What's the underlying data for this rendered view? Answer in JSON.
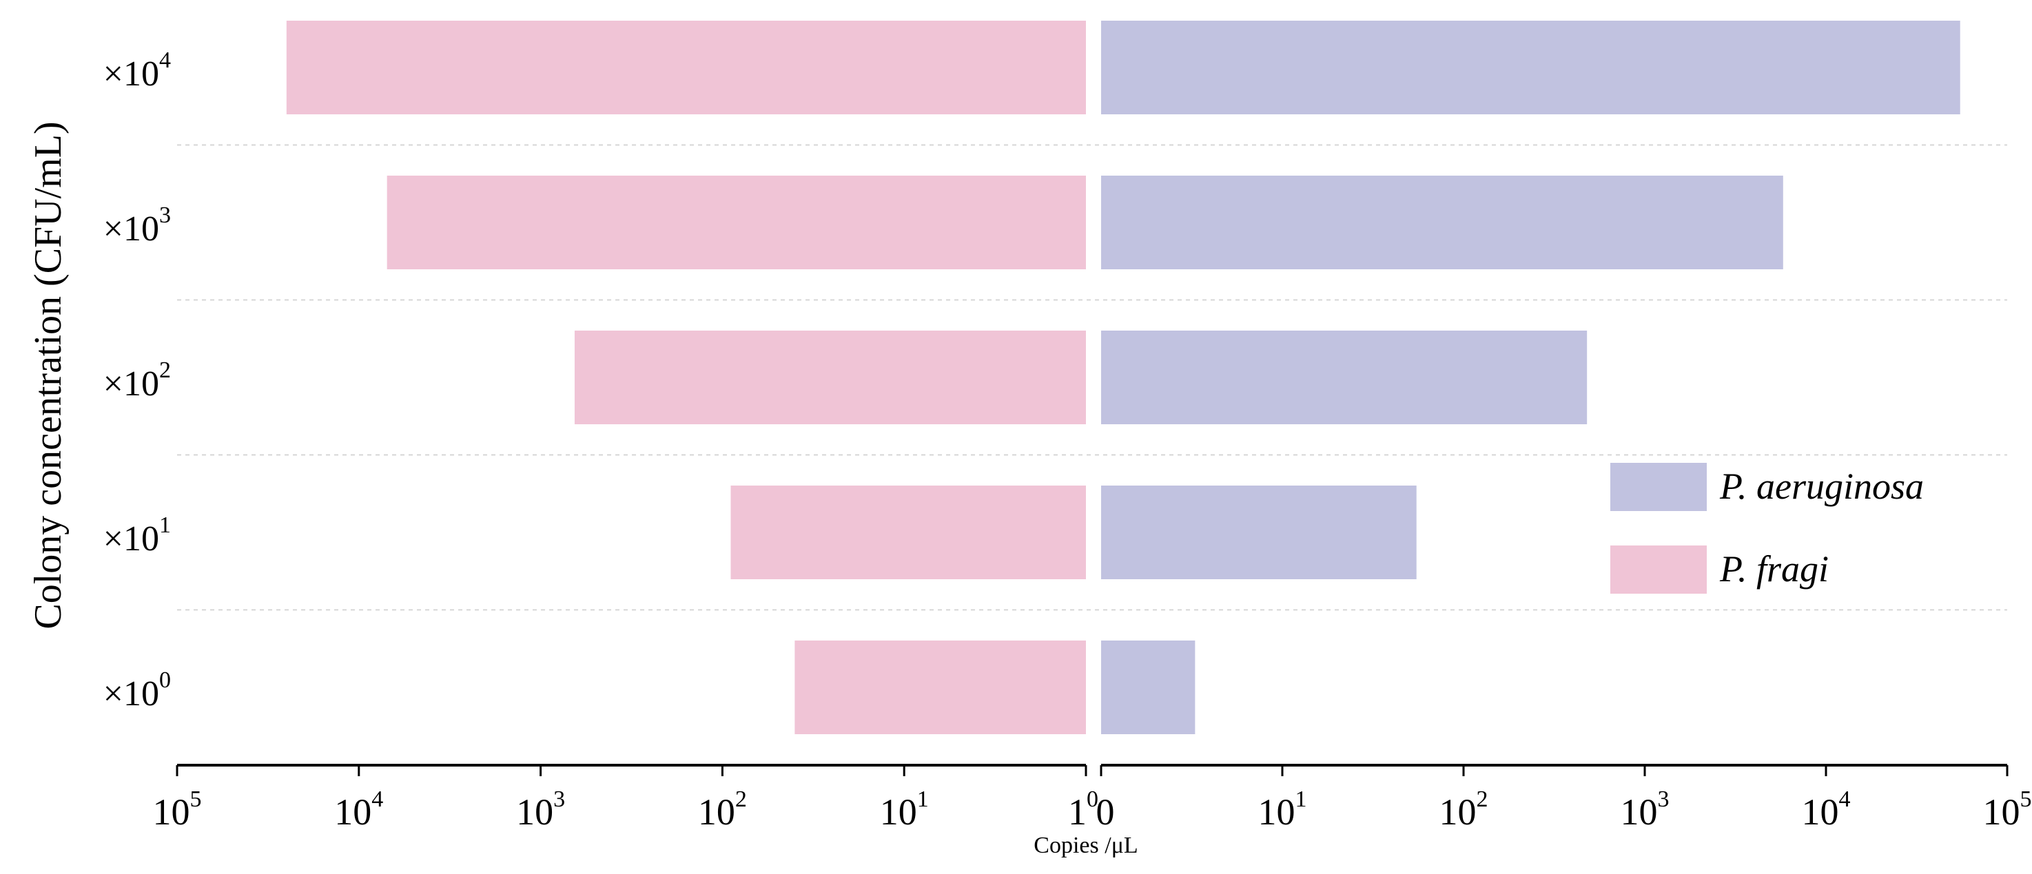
{
  "chart_data": {
    "type": "bar",
    "orientation": "horizontal-butterfly",
    "xscale": "log",
    "xlim": [
      1,
      100000
    ],
    "ylabel": "Colony concentration (CFU/mL)",
    "xlabel": "Copies /μL",
    "categories": [
      "×10⁴",
      "×10³",
      "×10²",
      "×10¹",
      "×10⁰"
    ],
    "category_labels": [
      {
        "base": "×10",
        "exp": "4"
      },
      {
        "base": "×10",
        "exp": "3"
      },
      {
        "base": "×10",
        "exp": "2"
      },
      {
        "base": "×10",
        "exp": "1"
      },
      {
        "base": "×10",
        "exp": "0"
      }
    ],
    "x_ticks_left": [
      {
        "base": "10",
        "exp": "5"
      },
      {
        "base": "10",
        "exp": "4"
      },
      {
        "base": "10",
        "exp": "3"
      },
      {
        "base": "10",
        "exp": "2"
      },
      {
        "base": "10",
        "exp": "1"
      },
      {
        "base": "1",
        "exp": "0"
      }
    ],
    "x_ticks_right": [
      {
        "base": "0",
        "exp": ""
      },
      {
        "base": "10",
        "exp": "1"
      },
      {
        "base": "10",
        "exp": "2"
      },
      {
        "base": "10",
        "exp": "3"
      },
      {
        "base": "10",
        "exp": "4"
      },
      {
        "base": "10",
        "exp": "5"
      }
    ],
    "series": [
      {
        "name": "P. fragi",
        "side": "left",
        "color": "#f0c4d6",
        "values": [
          25000,
          7000,
          650,
          90,
          40
        ]
      },
      {
        "name": "P. aeruginosa",
        "side": "right",
        "color": "#c1c2e0",
        "values": [
          55000,
          5800,
          480,
          55,
          3.3
        ]
      }
    ],
    "legend": {
      "placement": "right",
      "order": [
        "P. aeruginosa",
        "P. fragi"
      ]
    },
    "grid": "horizontal-dashed-between-categories"
  }
}
